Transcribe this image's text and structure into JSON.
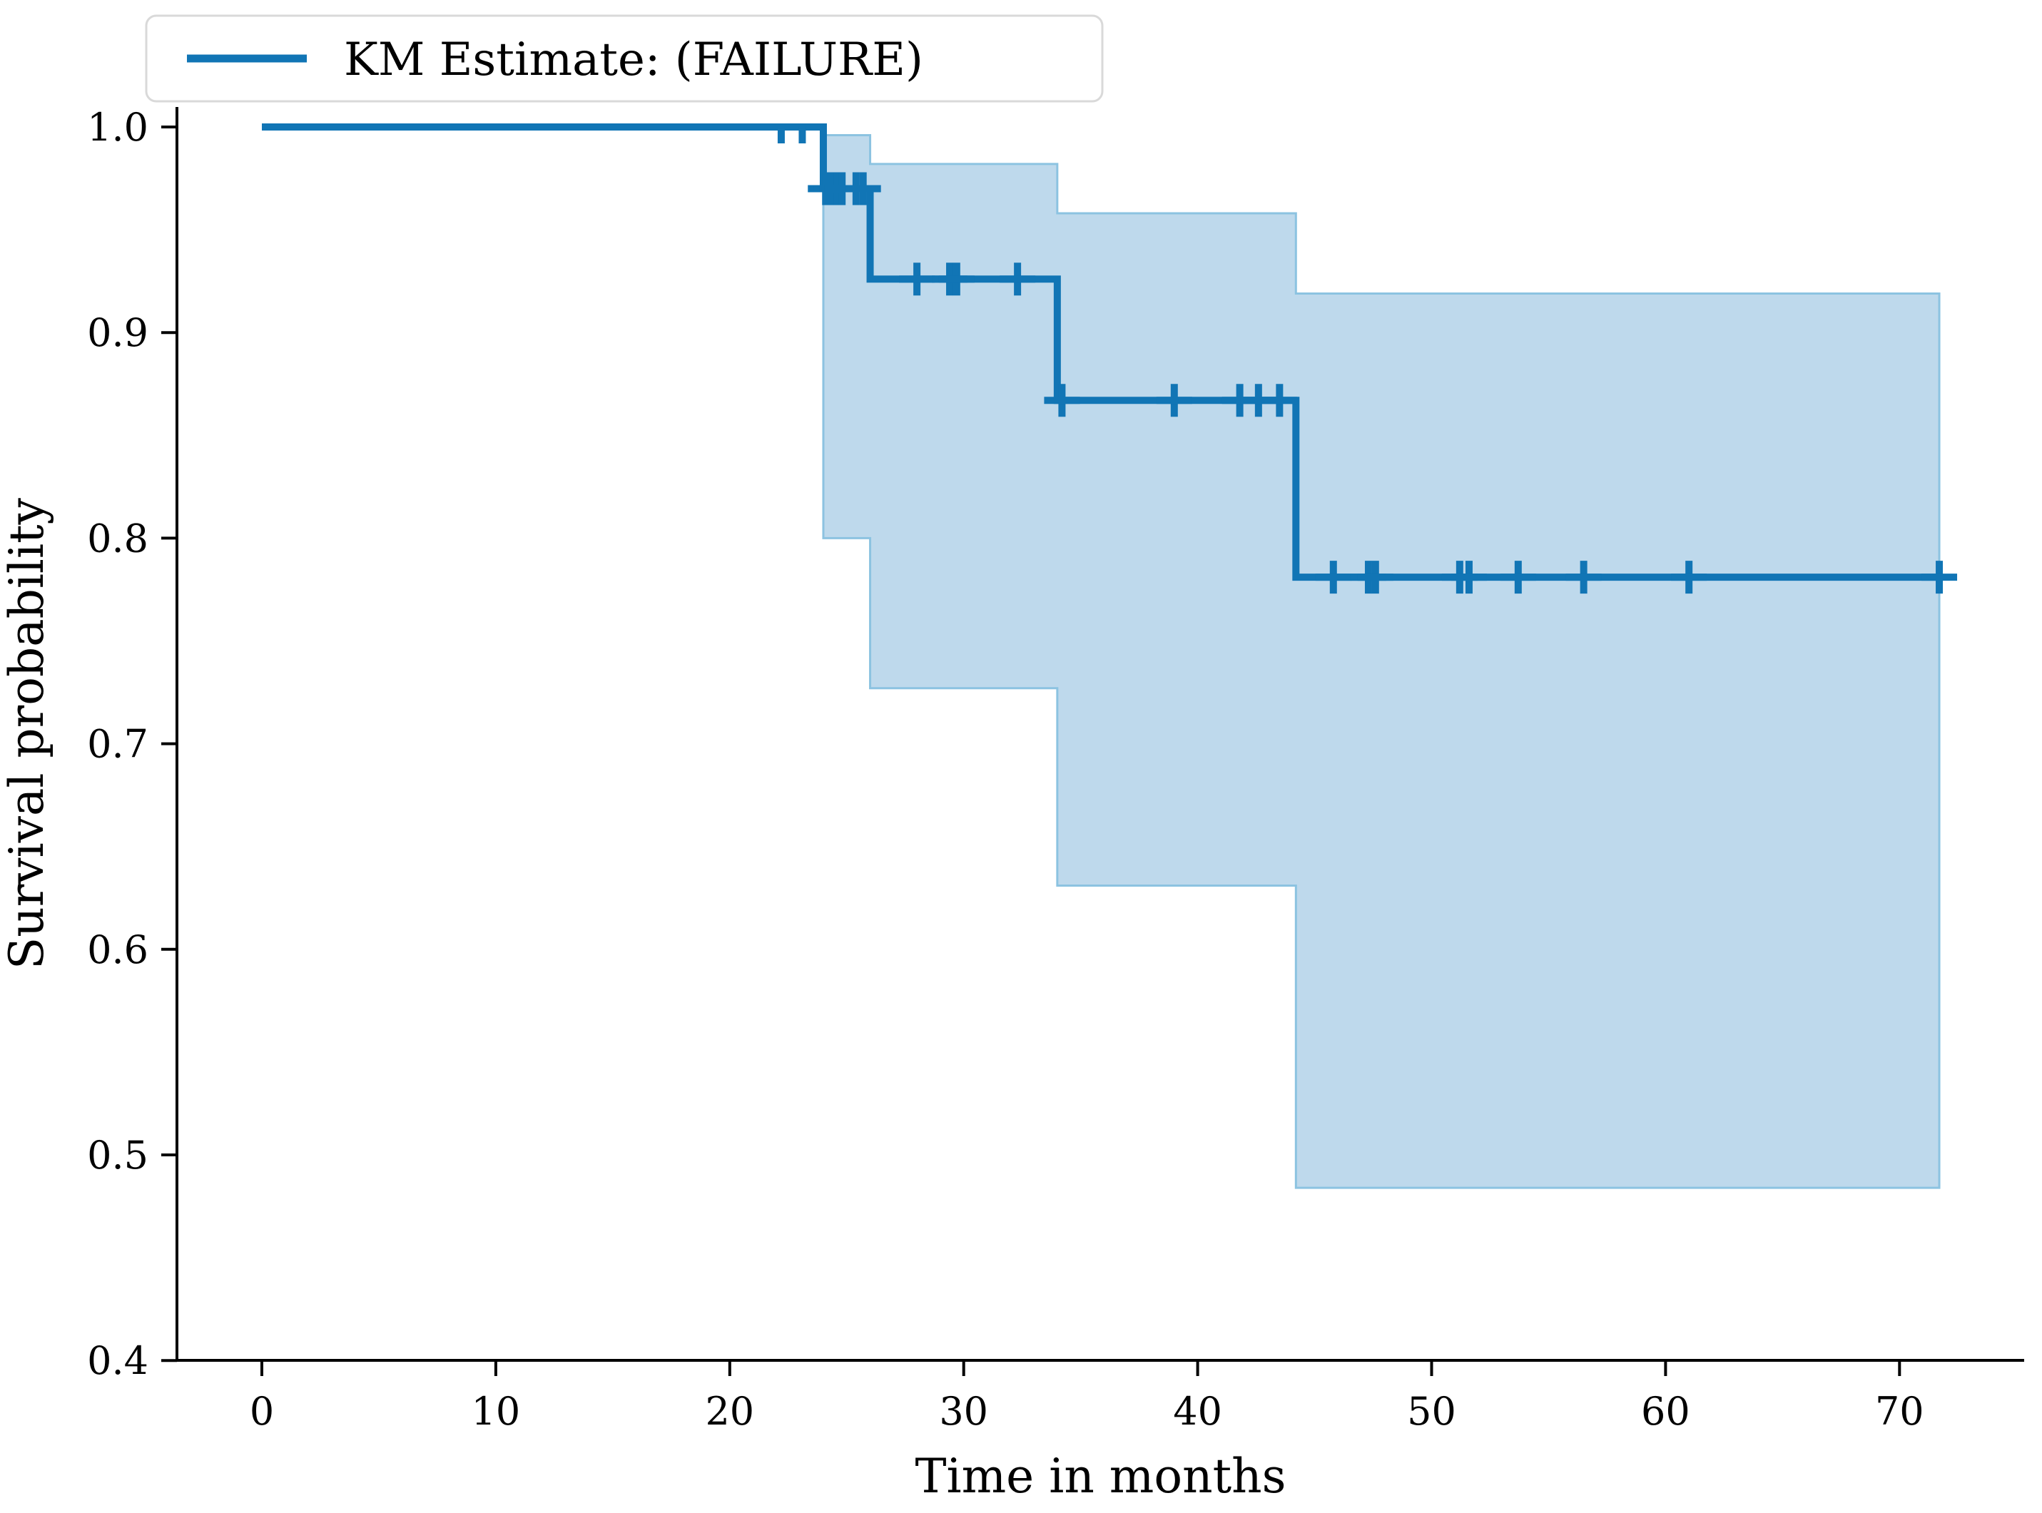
{
  "figure": {
    "legend": {
      "label": "KM Estimate: (FAILURE)"
    },
    "colors": {
      "line": "#1175b5",
      "band_fill": "#bed9ec",
      "band_edge": "#8cc3e1",
      "legend_border": "#d9d9d9",
      "spine": "#000000",
      "text": "#000000",
      "background": "#ffffff"
    }
  },
  "chart_data": {
    "type": "line",
    "subtype": "kaplan-meier-step-with-confidence-band",
    "title": "",
    "legend_entries": [
      "KM Estimate: (FAILURE)"
    ],
    "legend_position": "upper-left",
    "xlabel": "Time in months",
    "ylabel": "Survival probability",
    "xlim": [
      -3.6,
      75.3
    ],
    "ylim": [
      0.4,
      1.008
    ],
    "xticks": [
      0,
      10,
      20,
      30,
      40,
      50,
      60,
      70
    ],
    "yticks": [
      1.0,
      0.9,
      0.8,
      0.7,
      0.6,
      0.5,
      0.4
    ],
    "ytick_labels": [
      "1.0",
      "0.9",
      "0.8",
      "0.7",
      "0.6",
      "0.5",
      "0.4"
    ],
    "grid": false,
    "series": [
      {
        "name": "KM Estimate: (FAILURE)",
        "step_points": [
          [
            0,
            1.0
          ],
          [
            24,
            1.0
          ],
          [
            24,
            0.97
          ],
          [
            26,
            0.97
          ],
          [
            26,
            0.926
          ],
          [
            34,
            0.926
          ],
          [
            34,
            0.867
          ],
          [
            44.2,
            0.867
          ],
          [
            44.2,
            0.781
          ],
          [
            71.7,
            0.781
          ]
        ]
      }
    ],
    "confidence_band": [
      {
        "t0": 24,
        "t1": 26,
        "lower": 0.8,
        "upper": 0.996
      },
      {
        "t0": 26,
        "t1": 34,
        "lower": 0.727,
        "upper": 0.982
      },
      {
        "t0": 34,
        "t1": 44.2,
        "lower": 0.631,
        "upper": 0.958
      },
      {
        "t0": 44.2,
        "t1": 71.7,
        "lower": 0.484,
        "upper": 0.919
      }
    ],
    "censor_marks": [
      {
        "t": 22.2,
        "s": 1.0,
        "half": true
      },
      {
        "t": 23.1,
        "s": 1.0,
        "half": true
      },
      {
        "t": 24.1,
        "s": 0.97
      },
      {
        "t": 24.35,
        "s": 0.97
      },
      {
        "t": 24.6,
        "s": 0.97
      },
      {
        "t": 24.8,
        "s": 0.97
      },
      {
        "t": 25.4,
        "s": 0.97
      },
      {
        "t": 25.7,
        "s": 0.97
      },
      {
        "t": 28.0,
        "s": 0.926
      },
      {
        "t": 29.4,
        "s": 0.926
      },
      {
        "t": 29.7,
        "s": 0.926
      },
      {
        "t": 32.3,
        "s": 0.926
      },
      {
        "t": 34.2,
        "s": 0.867
      },
      {
        "t": 39.0,
        "s": 0.867
      },
      {
        "t": 41.8,
        "s": 0.867
      },
      {
        "t": 42.6,
        "s": 0.867
      },
      {
        "t": 43.5,
        "s": 0.867
      },
      {
        "t": 45.8,
        "s": 0.781
      },
      {
        "t": 47.3,
        "s": 0.781
      },
      {
        "t": 47.6,
        "s": 0.781
      },
      {
        "t": 51.2,
        "s": 0.781
      },
      {
        "t": 51.6,
        "s": 0.781
      },
      {
        "t": 53.7,
        "s": 0.781
      },
      {
        "t": 56.5,
        "s": 0.781
      },
      {
        "t": 61.0,
        "s": 0.781
      },
      {
        "t": 71.7,
        "s": 0.781
      }
    ]
  }
}
